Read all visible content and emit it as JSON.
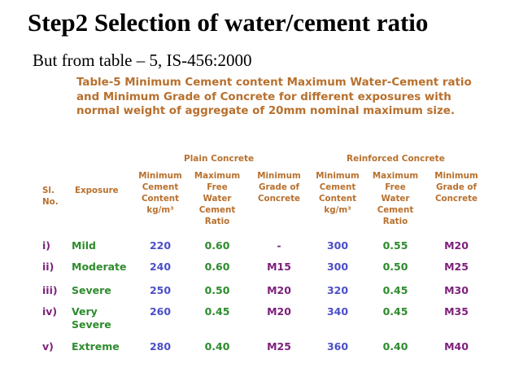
{
  "slide": {
    "title": "Step2  Selection of water/cement ratio",
    "subtitle": "But from table – 5, IS-456:2000"
  },
  "table": {
    "caption": "Table-5 Minimum Cement content Maximum Water-Cement ratio and Minimum Grade of Concrete for different exposures with normal weight of aggregate of 20mm nominal maximum size.",
    "group_headers": [
      "Plain Concrete",
      "Reinforced Concrete"
    ],
    "columns": [
      "Sl.\nNo.",
      "Exposure",
      "Minimum\nCement\nContent\nkg/m³",
      "Maximum\nFree\nWater\nCement\nRatio",
      "Minimum\nGrade of\nConcrete",
      "Minimum\nCement\nContent\nkg/m³",
      "Maximum\nFree\nWater\nCement\nRatio",
      "Minimum\nGrade of\nConcrete"
    ],
    "rows": [
      [
        "i)",
        "Mild",
        "220",
        "0.60",
        "-",
        "300",
        "0.55",
        "M20"
      ],
      [
        "ii)",
        "Moderate",
        "240",
        "0.60",
        "M15",
        "300",
        "0.50",
        "M25"
      ],
      [
        "iii)",
        "Severe",
        "250",
        "0.50",
        "M20",
        "320",
        "0.45",
        "M30"
      ],
      [
        "iv)",
        "Very\nSevere",
        "260",
        "0.45",
        "M20",
        "340",
        "0.45",
        "M35"
      ],
      [
        "v)",
        "Extreme",
        "280",
        "0.40",
        "M25",
        "360",
        "0.40",
        "M40"
      ]
    ]
  },
  "colors": {
    "header": "#b8702d",
    "serial": "#7d1f7a",
    "exposure": "#2d8b2d",
    "cement": "#4b4fc9",
    "ratio": "#2d8b2d",
    "grade": "#7d1f7a"
  }
}
